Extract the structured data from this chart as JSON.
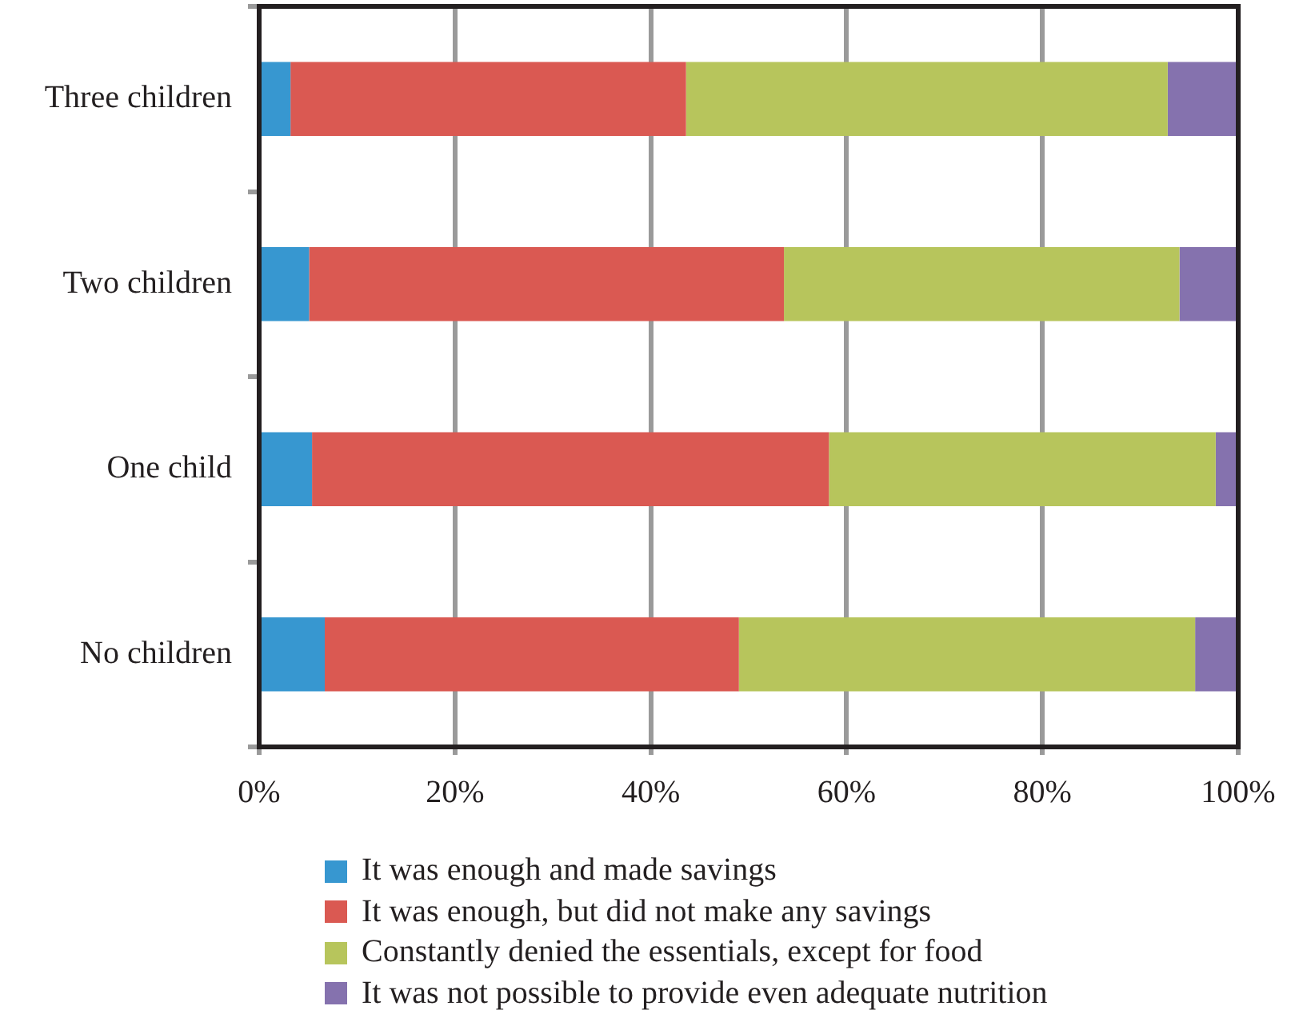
{
  "chart_data": {
    "type": "bar",
    "orientation": "horizontal",
    "stacked": true,
    "categories": [
      "Three children",
      "Two children",
      "One child",
      "No children"
    ],
    "series": [
      {
        "name": "It was enough and made savings",
        "color": "#3797d0",
        "values": [
          3.2,
          5.1,
          5.4,
          6.7
        ]
      },
      {
        "name": "It was enough, but did not make any savings",
        "color": "#da5952",
        "values": [
          40.4,
          48.5,
          52.8,
          42.3
        ]
      },
      {
        "name": "Constantly denied the essentials, except for food",
        "color": "#b7c55c",
        "values": [
          49.2,
          40.4,
          39.5,
          46.6
        ]
      },
      {
        "name": "It was not possible to provide even adequate nutrition",
        "color": "#8572ae",
        "values": [
          7.2,
          6.0,
          2.3,
          4.4
        ]
      }
    ],
    "xlim": [
      0,
      100
    ],
    "xticks": [
      {
        "value": 0,
        "label": "0%"
      },
      {
        "value": 20,
        "label": "20%"
      },
      {
        "value": 40,
        "label": "40%"
      },
      {
        "value": 60,
        "label": "60%"
      },
      {
        "value": 80,
        "label": "80%"
      },
      {
        "value": 100,
        "label": "100%"
      }
    ],
    "grid": "x",
    "legend": "bottom"
  }
}
